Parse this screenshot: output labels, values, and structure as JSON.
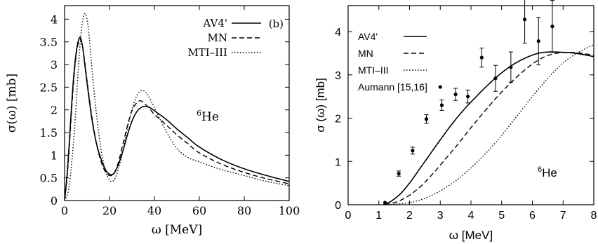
{
  "chart_data": [
    {
      "type": "line",
      "panel_label": "(b)",
      "annotation": "6He",
      "annotation_sup": "6",
      "annotation_main": "He",
      "xlabel": "ω  [MeV]",
      "ylabel": "σ(ω) [mb]",
      "xlim": [
        0,
        100
      ],
      "ylim": [
        0,
        4.3
      ],
      "xticks": [
        0,
        20,
        40,
        60,
        80,
        100
      ],
      "yticks": [
        0,
        0.5,
        1,
        1.5,
        2,
        2.5,
        3,
        3.5,
        4
      ],
      "ytick_labels": [
        "0",
        "0.5",
        "1",
        "1.5",
        "2",
        "2.5",
        "3",
        "3.5",
        "4"
      ],
      "legend_position": "top-right",
      "series": [
        {
          "name": "AV4'",
          "style": "solid",
          "x": [
            0,
            1,
            2,
            3,
            4,
            5,
            6,
            7,
            8,
            9,
            10,
            12,
            14,
            16,
            18,
            20,
            22,
            24,
            26,
            28,
            30,
            32,
            34,
            36,
            38,
            40,
            45,
            50,
            55,
            60,
            70,
            80,
            90,
            100
          ],
          "y": [
            0,
            0.5,
            1.2,
            2.0,
            2.7,
            3.2,
            3.5,
            3.6,
            3.4,
            3.0,
            2.6,
            1.85,
            1.3,
            0.95,
            0.7,
            0.58,
            0.6,
            0.8,
            1.1,
            1.45,
            1.75,
            1.95,
            2.05,
            2.08,
            2.05,
            1.98,
            1.8,
            1.58,
            1.38,
            1.18,
            0.9,
            0.7,
            0.55,
            0.42
          ]
        },
        {
          "name": "MN",
          "style": "dashed",
          "x": [
            0,
            1,
            2,
            3,
            4,
            5,
            6,
            7,
            8,
            9,
            10,
            12,
            14,
            16,
            18,
            20,
            22,
            24,
            26,
            28,
            30,
            32,
            34,
            36,
            38,
            40,
            45,
            50,
            55,
            60,
            70,
            80,
            90,
            100
          ],
          "y": [
            0,
            0.45,
            1.1,
            1.9,
            2.6,
            3.15,
            3.45,
            3.55,
            3.4,
            3.05,
            2.65,
            1.9,
            1.3,
            0.9,
            0.65,
            0.55,
            0.6,
            0.85,
            1.25,
            1.65,
            1.98,
            2.15,
            2.2,
            2.12,
            2.02,
            1.9,
            1.68,
            1.45,
            1.25,
            1.05,
            0.8,
            0.62,
            0.48,
            0.37
          ]
        },
        {
          "name": "MTI–III",
          "style": "dotted",
          "x": [
            0,
            2,
            4,
            5,
            6,
            7,
            8,
            9,
            10,
            11,
            12,
            14,
            16,
            18,
            20,
            22,
            24,
            26,
            28,
            30,
            32,
            34,
            36,
            38,
            40,
            45,
            50,
            55,
            60,
            70,
            80,
            90,
            100
          ],
          "y": [
            0,
            0.3,
            1.3,
            2.0,
            2.8,
            3.5,
            3.95,
            4.12,
            4.0,
            3.6,
            3.0,
            2.0,
            1.2,
            0.7,
            0.45,
            0.45,
            0.7,
            1.1,
            1.6,
            2.0,
            2.3,
            2.42,
            2.4,
            2.25,
            2.05,
            1.55,
            1.15,
            0.95,
            0.85,
            0.68,
            0.55,
            0.42,
            0.33
          ]
        }
      ]
    },
    {
      "type": "line",
      "annotation": "6He",
      "annotation_sup": "6",
      "annotation_main": "He",
      "xlabel": "ω  [MeV]",
      "ylabel": "σ (ω) [mb]",
      "xlim": [
        0,
        8
      ],
      "ylim": [
        0,
        4.6
      ],
      "xticks": [
        0,
        1,
        2,
        3,
        4,
        5,
        6,
        7,
        8
      ],
      "yticks": [
        0,
        1,
        2,
        3,
        4
      ],
      "legend_position": "top-left",
      "series": [
        {
          "name": "AV4'",
          "style": "solid",
          "x": [
            1.15,
            1.4,
            1.7,
            2.0,
            2.3,
            2.6,
            3.0,
            3.4,
            3.8,
            4.2,
            4.6,
            5.0,
            5.4,
            5.8,
            6.2,
            6.6,
            7.0,
            7.4,
            7.8,
            8.0
          ],
          "y": [
            0,
            0.08,
            0.25,
            0.5,
            0.8,
            1.1,
            1.5,
            1.88,
            2.22,
            2.52,
            2.8,
            3.05,
            3.25,
            3.4,
            3.5,
            3.53,
            3.52,
            3.5,
            3.45,
            3.42
          ]
        },
        {
          "name": "MN",
          "style": "dashed",
          "x": [
            1.2,
            1.6,
            2.0,
            2.4,
            2.8,
            3.2,
            3.6,
            4.0,
            4.4,
            4.8,
            5.2,
            5.6,
            6.0,
            6.4,
            6.8,
            7.2,
            7.6,
            8.0
          ],
          "y": [
            0,
            0.07,
            0.22,
            0.45,
            0.75,
            1.08,
            1.42,
            1.78,
            2.12,
            2.45,
            2.75,
            3.02,
            3.25,
            3.42,
            3.5,
            3.52,
            3.5,
            3.45
          ]
        },
        {
          "name": "MTI–III",
          "style": "dotted",
          "x": [
            1.3,
            2.0,
            2.5,
            3.0,
            3.5,
            4.0,
            4.5,
            5.0,
            5.5,
            6.0,
            6.5,
            7.0,
            7.5,
            8.0
          ],
          "y": [
            0,
            0.05,
            0.15,
            0.32,
            0.55,
            0.85,
            1.2,
            1.6,
            2.05,
            2.5,
            2.92,
            3.28,
            3.52,
            3.7
          ]
        },
        {
          "name": "Aumann [15,16]",
          "style": "points",
          "x": [
            1.2,
            1.65,
            2.1,
            2.55,
            3.0,
            3.05,
            3.5,
            3.9,
            4.35,
            4.8,
            5.3,
            5.75,
            6.2,
            6.65
          ],
          "y": [
            0.05,
            0.72,
            1.25,
            1.98,
            2.72,
            2.3,
            2.55,
            2.5,
            3.4,
            2.92,
            3.18,
            4.28,
            3.78,
            4.12
          ],
          "err": [
            0,
            0.06,
            0.08,
            0.1,
            0,
            0.12,
            0.14,
            0.15,
            0.22,
            0.3,
            0.35,
            0.55,
            0.55,
            0.6
          ]
        }
      ]
    }
  ]
}
